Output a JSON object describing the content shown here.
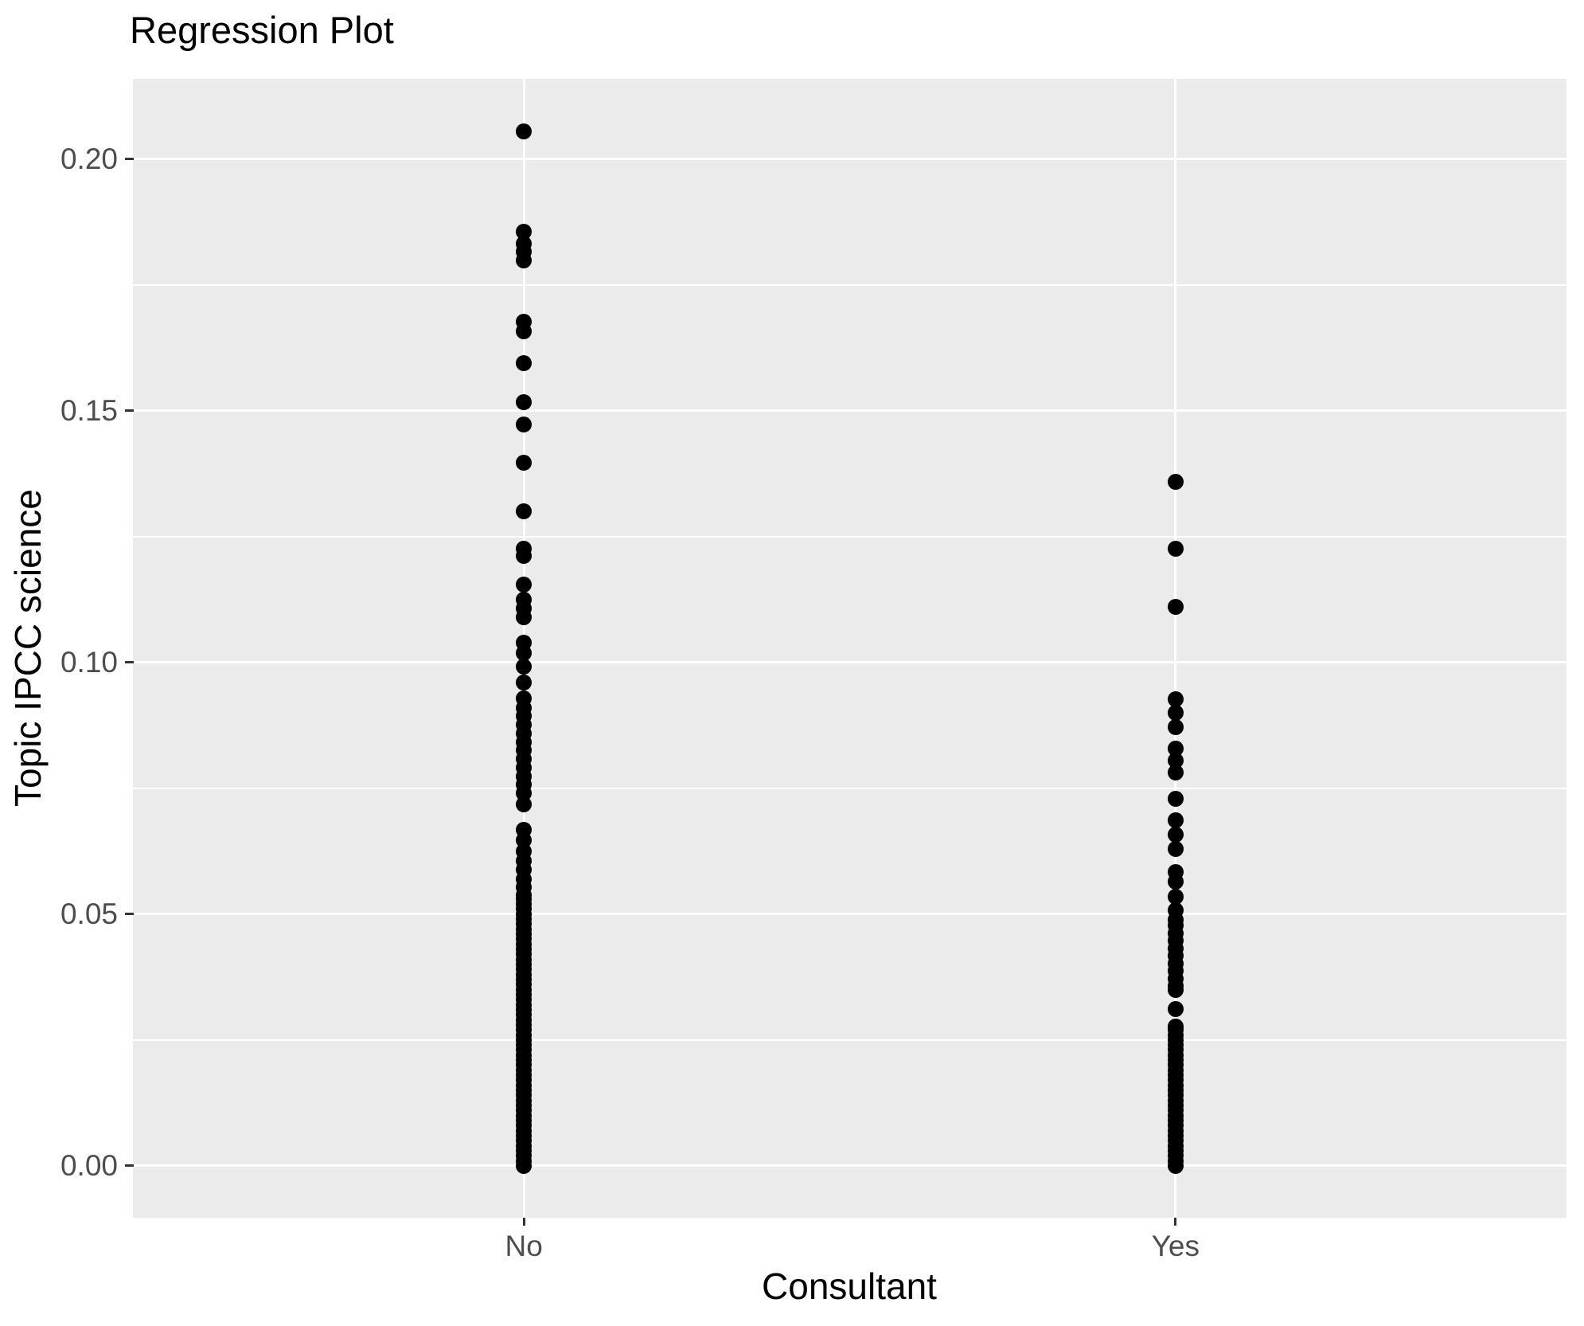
{
  "chart_data": {
    "type": "scatter",
    "title": "Regression Plot",
    "xlabel": "Consultant",
    "ylabel": "Topic IPCC science",
    "categories": [
      "No",
      "Yes"
    ],
    "ylim": [
      -0.0103,
      0.2159
    ],
    "y_ticks": [
      {
        "value": 0.0,
        "label": "0.00"
      },
      {
        "value": 0.05,
        "label": "0.05"
      },
      {
        "value": 0.1,
        "label": "0.10"
      },
      {
        "value": 0.15,
        "label": "0.15"
      },
      {
        "value": 0.2,
        "label": "0.20"
      }
    ],
    "y_minor_ticks": [
      0.025,
      0.075,
      0.125,
      0.175
    ],
    "grid": true,
    "legend": "none",
    "panel_background": "#EBEBEB",
    "grid_color": "#FFFFFF",
    "point_color": "#000000",
    "tick_label_color": "#4D4D4D",
    "tick_mark_color": "#333333",
    "series": [
      {
        "name": "No",
        "values": [
          0.2054,
          0.1855,
          0.1832,
          0.1815,
          0.1798,
          0.1676,
          0.1657,
          0.1595,
          0.1516,
          0.1473,
          0.1397,
          0.13,
          0.1226,
          0.1211,
          0.1155,
          0.1124,
          0.1107,
          0.1089,
          0.1039,
          0.1018,
          0.0991,
          0.096,
          0.0928,
          0.091,
          0.0893,
          0.0876,
          0.0859,
          0.0842,
          0.0825,
          0.0808,
          0.0791,
          0.0774,
          0.0757,
          0.074,
          0.0718,
          0.0668,
          0.0647,
          0.0624,
          0.0605,
          0.0588,
          0.057,
          0.0553,
          0.0537,
          0.053,
          0.052,
          0.051,
          0.05,
          0.049,
          0.048,
          0.047,
          0.046,
          0.045,
          0.044,
          0.043,
          0.042,
          0.041,
          0.04,
          0.039,
          0.038,
          0.037,
          0.036,
          0.035,
          0.034,
          0.033,
          0.032,
          0.031,
          0.03,
          0.029,
          0.028,
          0.027,
          0.026,
          0.025,
          0.024,
          0.023,
          0.022,
          0.021,
          0.02,
          0.019,
          0.018,
          0.017,
          0.016,
          0.015,
          0.014,
          0.013,
          0.012,
          0.011,
          0.01,
          0.009,
          0.008,
          0.007,
          0.006,
          0.005,
          0.004,
          0.003,
          0.002,
          0.001,
          0.0
        ]
      },
      {
        "name": "Yes",
        "values": [
          0.1358,
          0.1226,
          0.111,
          0.0927,
          0.09,
          0.0871,
          0.0829,
          0.0805,
          0.0781,
          0.0729,
          0.0687,
          0.0658,
          0.063,
          0.0584,
          0.0564,
          0.0534,
          0.0508,
          0.0489,
          0.0477,
          0.0462,
          0.0447,
          0.0432,
          0.0417,
          0.0402,
          0.0387,
          0.0372,
          0.0357,
          0.035,
          0.0311,
          0.0276,
          0.027,
          0.026,
          0.025,
          0.024,
          0.023,
          0.022,
          0.021,
          0.02,
          0.019,
          0.018,
          0.017,
          0.016,
          0.015,
          0.014,
          0.013,
          0.012,
          0.011,
          0.01,
          0.009,
          0.008,
          0.007,
          0.006,
          0.005,
          0.004,
          0.003,
          0.002,
          0.001,
          0.0
        ]
      }
    ]
  }
}
